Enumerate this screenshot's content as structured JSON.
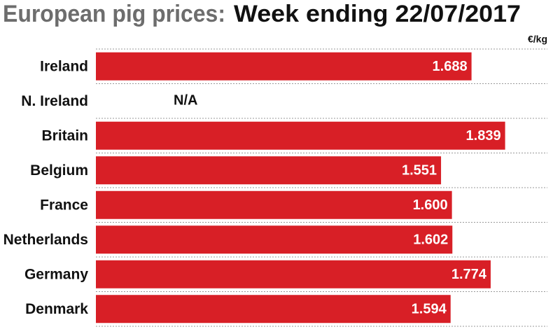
{
  "chart_data": {
    "type": "hbar",
    "title": "European pig prices:",
    "subtitle": "Week ending 22/07/2017",
    "unit": "€/kg",
    "categories": [
      "Ireland",
      "N. Ireland",
      "Britain",
      "Belgium",
      "France",
      "Netherlands",
      "Germany",
      "Denmark"
    ],
    "values": [
      1.688,
      null,
      1.839,
      1.551,
      1.6,
      1.602,
      1.774,
      1.594
    ],
    "value_labels": [
      "1.688",
      "N/A",
      "1.839",
      "1.551",
      "1.600",
      "1.602",
      "1.774",
      "1.594"
    ],
    "color": "#d81f26",
    "xlim": [
      0,
      1.9
    ]
  }
}
